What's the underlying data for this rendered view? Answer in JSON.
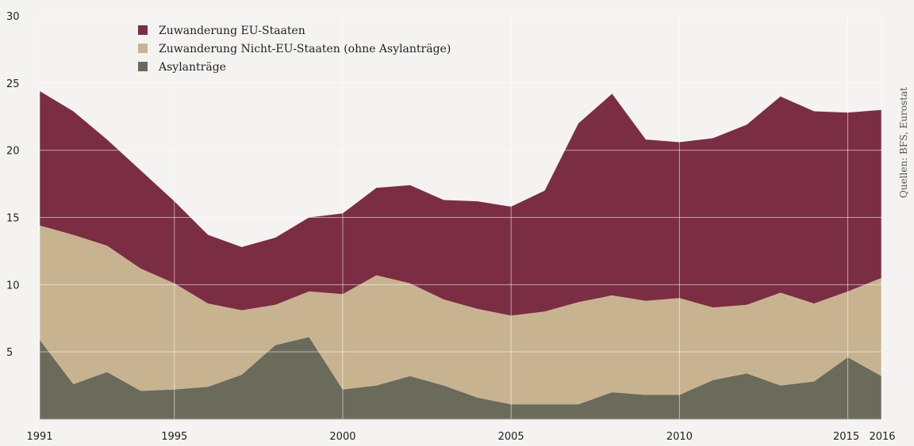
{
  "colors": {
    "background": "#f4f3f2",
    "grid": "#ffffff",
    "eu": "#7b2d43",
    "non_eu": "#c8b391",
    "asylum": "#6a6b5a"
  },
  "source": "Quellen: BFS, Eurostat",
  "chart_data": {
    "type": "area",
    "stacked": true,
    "title": "",
    "xlabel": "",
    "ylabel": "",
    "x": [
      1991,
      1992,
      1993,
      1994,
      1995,
      1996,
      1997,
      1998,
      1999,
      2000,
      2001,
      2002,
      2003,
      2004,
      2005,
      2006,
      2007,
      2008,
      2009,
      2010,
      2011,
      2012,
      2013,
      2014,
      2015,
      2016
    ],
    "x_tick_labels": [
      "1991",
      "1995",
      "2000",
      "2005",
      "2010",
      "2015",
      "2016"
    ],
    "x_tick_values": [
      1991,
      1995,
      2000,
      2005,
      2010,
      2015,
      2016
    ],
    "y_tick_labels": [
      "5",
      "10",
      "15",
      "20",
      "25",
      "30"
    ],
    "y_tick_values": [
      5,
      10,
      15,
      20,
      25,
      30
    ],
    "ylim": [
      0,
      30
    ],
    "xlim": [
      1991,
      2016
    ],
    "grid": true,
    "legend_position": "top-left",
    "series": [
      {
        "name": "Asylanträge",
        "key": "asylum",
        "values": [
          5.9,
          2.6,
          3.5,
          2.1,
          2.2,
          2.4,
          3.3,
          5.5,
          6.1,
          2.2,
          2.5,
          3.2,
          2.5,
          1.6,
          1.1,
          1.1,
          1.1,
          2.0,
          1.8,
          1.8,
          2.9,
          3.4,
          2.5,
          2.8,
          4.6,
          3.2
        ]
      },
      {
        "name": "Zuwanderung Nicht-EU-Staaten (ohne Asylanträge)",
        "key": "non_eu",
        "values": [
          8.5,
          11.1,
          9.4,
          9.1,
          7.9,
          6.2,
          4.8,
          3.0,
          3.4,
          7.1,
          8.2,
          6.9,
          6.4,
          6.6,
          6.6,
          6.9,
          7.6,
          7.2,
          7.0,
          7.2,
          5.4,
          5.1,
          6.9,
          5.8,
          4.9,
          7.3
        ]
      },
      {
        "name": "Zuwanderung EU-Staaten",
        "key": "eu",
        "values": [
          10.0,
          9.2,
          7.9,
          7.3,
          6.1,
          5.1,
          4.7,
          5.0,
          5.5,
          6.0,
          6.5,
          7.3,
          7.4,
          8.0,
          8.1,
          9.0,
          13.3,
          15.0,
          12.0,
          11.6,
          12.6,
          13.4,
          14.6,
          14.3,
          13.3,
          12.5
        ]
      }
    ],
    "legend_order": [
      "eu",
      "non_eu",
      "asylum"
    ]
  }
}
